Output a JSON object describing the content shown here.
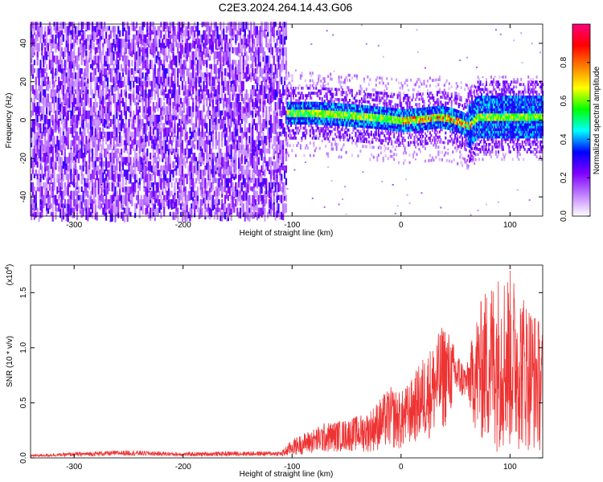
{
  "figure_title": "C2E3.2024.264.14.43.G06",
  "chart_data": [
    {
      "type": "heatmap",
      "title": "C2E3.2024.264.14.43.G06",
      "xlabel": "Height of straight line (km)",
      "ylabel": "Frequency (Hz)",
      "xlim": [
        -340,
        130
      ],
      "ylim": [
        -50,
        50
      ],
      "x_ticks": [
        -300,
        -200,
        -100,
        0,
        100
      ],
      "x_tick_labels": [
        "-300",
        "-200",
        "-100",
        "0",
        "100"
      ],
      "y_ticks": [
        -40,
        -20,
        0,
        20,
        40
      ],
      "y_tick_labels": [
        "-40",
        "-20",
        "0",
        "20",
        "40"
      ],
      "noise_region_x": [
        -340,
        -105
      ],
      "signal_center_frequency_hz": [
        [
          -105,
          3
        ],
        [
          -80,
          3
        ],
        [
          -50,
          2
        ],
        [
          -30,
          1
        ],
        [
          -10,
          0
        ],
        [
          0,
          -1
        ],
        [
          20,
          0
        ],
        [
          35,
          1
        ],
        [
          45,
          0
        ],
        [
          55,
          -2
        ],
        [
          62,
          -4
        ],
        [
          70,
          1
        ],
        [
          100,
          1
        ],
        [
          130,
          1
        ]
      ],
      "colorbar": {
        "label": "Normalized spectral amplitude",
        "range": [
          0,
          1
        ],
        "ticks": [
          0.0,
          0.2,
          0.4,
          0.6,
          0.8
        ],
        "tick_labels": [
          "0.0",
          "0.2",
          "0.4",
          "0.6",
          "0.8"
        ],
        "colors": [
          "#ffffff",
          "#c080ff",
          "#8000ff",
          "#0000ff",
          "#00ffff",
          "#00ff00",
          "#ffff00",
          "#ff8000",
          "#ff0000",
          "#ff0080"
        ]
      },
      "grid": false
    },
    {
      "type": "line",
      "xlabel": "Height of straight line (km)",
      "ylabel": "SNR (10 * v/v)",
      "y_scale_label": "(x10",
      "y_scale_exponent": "4",
      "y_scale_suffix": ")",
      "xlim": [
        -340,
        130
      ],
      "ylim": [
        0,
        1.75
      ],
      "x_ticks": [
        -300,
        -200,
        -100,
        0,
        100
      ],
      "x_tick_labels": [
        "-300",
        "-200",
        "-100",
        "0",
        "100"
      ],
      "y_ticks": [
        0.0,
        0.5,
        1.0,
        1.5
      ],
      "y_tick_labels": [
        "0.0",
        "0.5",
        "1.0",
        "1.5"
      ],
      "line_color": "#ee3333",
      "envelope": {
        "x": [
          -340,
          -300,
          -250,
          -200,
          -150,
          -110,
          -100,
          -90,
          -70,
          -50,
          -30,
          -10,
          0,
          10,
          20,
          30,
          40,
          50,
          60,
          70,
          80,
          90,
          100,
          110,
          120,
          130
        ],
        "upper": [
          0.03,
          0.05,
          0.07,
          0.05,
          0.06,
          0.06,
          0.17,
          0.22,
          0.32,
          0.35,
          0.42,
          0.65,
          0.6,
          0.72,
          0.92,
          1.05,
          1.25,
          1.0,
          0.82,
          1.35,
          1.6,
          1.7,
          1.72,
          1.55,
          1.4,
          1.2
        ],
        "lower": [
          0.0,
          0.0,
          0.0,
          0.0,
          0.0,
          0.0,
          0.02,
          0.03,
          0.04,
          0.06,
          0.05,
          0.08,
          0.06,
          0.12,
          0.15,
          0.18,
          0.25,
          0.5,
          0.55,
          0.15,
          0.08,
          0.05,
          0.04,
          0.06,
          0.05,
          0.05
        ]
      },
      "grid": false
    }
  ]
}
